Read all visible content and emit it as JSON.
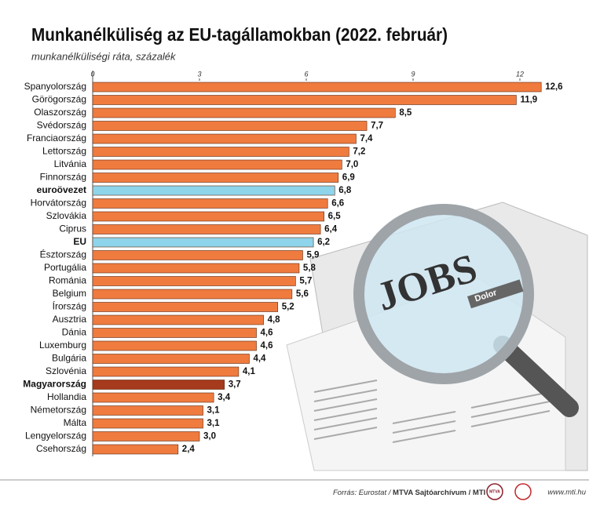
{
  "chart_data": {
    "type": "bar",
    "orientation": "horizontal",
    "title": "Munkanélküliség az EU-tagállamokban (2022. február)",
    "subtitle": "munkanélküliségi ráta, százalék",
    "categories": [
      "Spanyolország",
      "Görögország",
      "Olaszország",
      "Svédország",
      "Franciaország",
      "Lettország",
      "Litvánia",
      "Finnország",
      "euroövezet",
      "Horvátország",
      "Szlovákia",
      "Ciprus",
      "EU",
      "Észtország",
      "Portugália",
      "Románia",
      "Belgium",
      "Írország",
      "Ausztria",
      "Dánia",
      "Luxemburg",
      "Bulgária",
      "Szlovénia",
      "Magyarország",
      "Hollandia",
      "Németország",
      "Málta",
      "Lengyelország",
      "Csehország"
    ],
    "values": [
      12.6,
      11.9,
      8.5,
      7.7,
      7.4,
      7.2,
      7.0,
      6.9,
      6.8,
      6.6,
      6.5,
      6.4,
      6.2,
      5.9,
      5.8,
      5.7,
      5.6,
      5.2,
      4.8,
      4.6,
      4.6,
      4.4,
      4.1,
      3.7,
      3.4,
      3.1,
      3.1,
      3.0,
      2.4
    ],
    "value_labels": [
      "12,6",
      "11,9",
      "8,5",
      "7,7",
      "7,4",
      "7,2",
      "7,0",
      "6,9",
      "6,8",
      "6,6",
      "6,5",
      "6,4",
      "6,2",
      "5,9",
      "5,8",
      "5,7",
      "5,6",
      "5,2",
      "4,8",
      "4,6",
      "4,6",
      "4,4",
      "4,1",
      "3,7",
      "3,4",
      "3,1",
      "3,1",
      "3,0",
      "2,4"
    ],
    "color": "#f07b3f",
    "colors": [
      "#f07b3f",
      "#f07b3f",
      "#f07b3f",
      "#f07b3f",
      "#f07b3f",
      "#f07b3f",
      "#f07b3f",
      "#f07b3f",
      "#8ed4ea",
      "#f07b3f",
      "#f07b3f",
      "#f07b3f",
      "#8ed4ea",
      "#f07b3f",
      "#f07b3f",
      "#f07b3f",
      "#f07b3f",
      "#f07b3f",
      "#f07b3f",
      "#f07b3f",
      "#f07b3f",
      "#f07b3f",
      "#f07b3f",
      "#a63a1c",
      "#f07b3f",
      "#f07b3f",
      "#f07b3f",
      "#f07b3f",
      "#f07b3f"
    ],
    "xlim": [
      0,
      13
    ],
    "xticks": [
      0,
      3,
      6,
      9,
      12
    ],
    "grid": false
  },
  "illustration": {
    "headline": "JOBS",
    "section": "Dolor"
  },
  "footer": {
    "source": [
      "Forrás: Eurostat /",
      "MTVA Sajtóarchívum / MTI"
    ],
    "logo": "MTVA",
    "website": "www.mti.hu"
  }
}
